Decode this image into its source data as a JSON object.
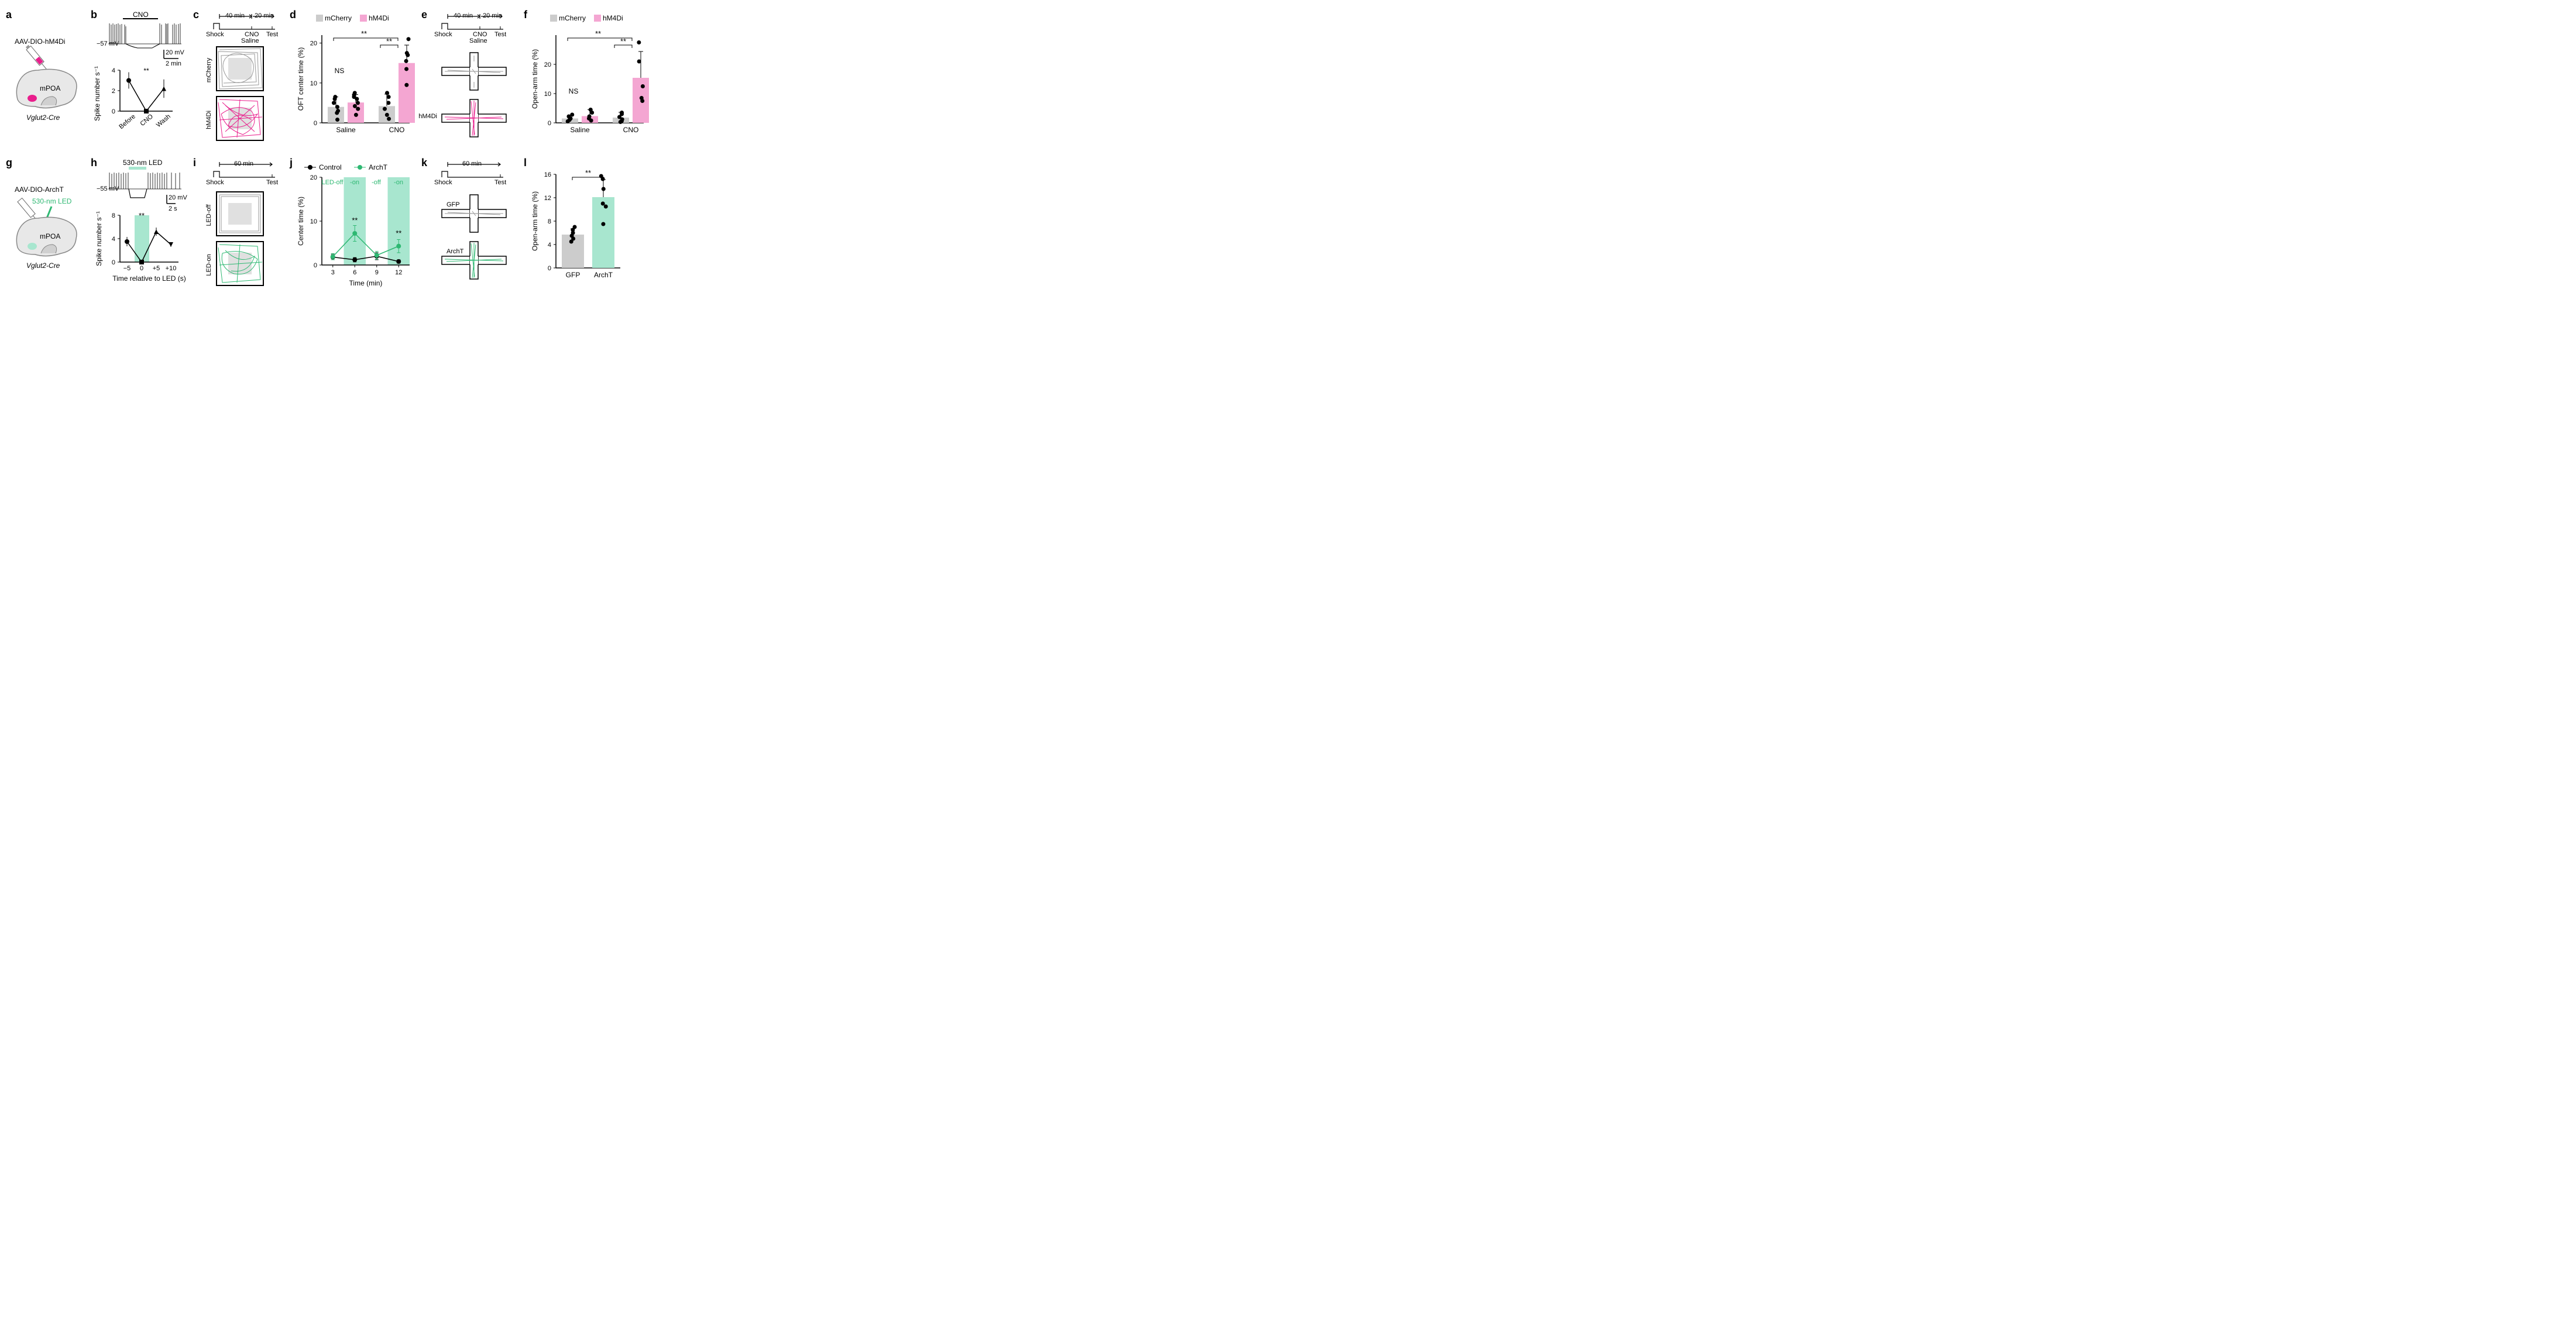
{
  "panels": {
    "a": {
      "virus_label": "AAV-DIO-hM4Di",
      "region": "mPOA",
      "mouse_line": "Vglut2-Cre",
      "virus_color": "#e91e8c"
    },
    "b": {
      "drug_label": "CNO",
      "resting_mv": "−57 mV",
      "scale_v": "20 mV",
      "scale_t": "2 min",
      "ylabel": "Spike number s⁻¹",
      "xcats": [
        "Before",
        "CNO",
        "Wash"
      ],
      "yticks": [
        0,
        2,
        4
      ],
      "values": [
        3.0,
        0,
        2.2
      ],
      "err": [
        0.8,
        0,
        0.9
      ],
      "sig": "**"
    },
    "c": {
      "timeline_labels": {
        "t1": "40 min",
        "t2": "20 min",
        "shock": "Shock",
        "cno": "CNO",
        "saline": "Saline",
        "test": "Test"
      },
      "top_label": "mCherry",
      "bot_label": "hM4Di",
      "top_color": "#999999",
      "bot_color": "#e91e8c"
    },
    "d": {
      "ylabel": "OFT center time (%)",
      "legend": {
        "mcherry": "mCherry",
        "hm4di": "hM4Di"
      },
      "xcats": [
        "Saline",
        "CNO"
      ],
      "yticks": [
        0,
        10,
        20
      ],
      "bars": [
        {
          "val": 4.0,
          "color": "#cccccc",
          "points": [
            0.8,
            2.5,
            3.0,
            4.0,
            5.0,
            6.5,
            6.0
          ]
        },
        {
          "val": 5.1,
          "color": "#f4a6d2",
          "points": [
            2.0,
            3.5,
            4.2,
            5.0,
            6.0,
            6.5,
            7.0,
            7.5
          ]
        },
        {
          "val": 4.2,
          "color": "#cccccc",
          "points": [
            1.0,
            2.0,
            3.5,
            5.0,
            6.5,
            7.5
          ]
        },
        {
          "val": 15.0,
          "color": "#f4a6d2",
          "points": [
            9.5,
            13.5,
            15.5,
            17.0,
            17.5,
            21.0
          ]
        }
      ],
      "err": [
        2.5,
        2.0,
        3.0,
        4.5
      ],
      "sig": "**",
      "ns": "NS",
      "mcherry_color": "#cccccc",
      "hm4di_color": "#f4a6d2"
    },
    "e": {
      "timeline_labels": {
        "t1": "40 min",
        "t2": "20 min",
        "shock": "Shock",
        "cno": "CNO",
        "saline": "Saline",
        "test": "Test"
      },
      "bot_label": "hM4Di",
      "top_color": "#999999",
      "bot_color": "#e91e8c"
    },
    "f": {
      "ylabel": "Open-arm time (%)",
      "legend": {
        "mcherry": "mCherry",
        "hm4di": "hM4Di"
      },
      "xcats": [
        "Saline",
        "CNO"
      ],
      "yticks": [
        0,
        10,
        20
      ],
      "bars": [
        {
          "val": 1.5,
          "color": "#cccccc",
          "points": [
            0.5,
            1.0,
            1.5,
            2.2,
            2.8
          ]
        },
        {
          "val": 2.3,
          "color": "#f4a6d2",
          "points": [
            0.8,
            1.5,
            2.2,
            3.5,
            4.5
          ]
        },
        {
          "val": 1.8,
          "color": "#cccccc",
          "points": [
            0.3,
            0.6,
            1.2,
            2.0,
            3.0,
            3.5
          ]
        },
        {
          "val": 15.4,
          "color": "#f4a6d2",
          "points": [
            7.5,
            8.5,
            12.5,
            21.0,
            27.5
          ]
        }
      ],
      "err": [
        1.2,
        2.2,
        1.8,
        9.0
      ],
      "sig": "**",
      "ns": "NS",
      "mcherry_color": "#cccccc",
      "hm4di_color": "#f4a6d2"
    },
    "g": {
      "virus_label": "AAV-DIO-ArchT",
      "led_label": "530-nm LED",
      "region": "mPOA",
      "mouse_line": "Vglut2-Cre",
      "led_color": "#2eb872"
    },
    "h": {
      "led_label": "530-nm LED",
      "led_color": "#a8e6cf",
      "resting_mv": "−55 mV",
      "scale_v": "20 mV",
      "scale_t": "2 s",
      "ylabel": "Spike number s⁻¹",
      "xlabel": "Time relative to LED (s)",
      "xcats": [
        "−5",
        "0",
        "+5",
        "+10"
      ],
      "yticks": [
        0,
        4,
        8
      ],
      "values": [
        3.5,
        0,
        5.2,
        3.0
      ],
      "err": [
        0.8,
        0,
        0.7,
        0.4
      ],
      "sig": "**"
    },
    "i": {
      "timeline_labels": {
        "t1": "60 min",
        "shock": "Shock",
        "test": "Test"
      },
      "top_label": "LED-off",
      "bot_label": "LED-on",
      "top_color": "#999999",
      "bot_color": "#2eb872"
    },
    "j": {
      "ylabel": "Center time (%)",
      "xlabel": "Time (min)",
      "legend": {
        "control": "Control",
        "archt": "ArchT"
      },
      "xticks": [
        3,
        6,
        9,
        12
      ],
      "yticks": [
        0,
        10,
        20
      ],
      "led_labels": [
        "LED-off",
        "-on",
        "-off",
        "-on"
      ],
      "led_color": "#a8e6cf",
      "control": {
        "color": "#000000",
        "vals": [
          1.8,
          1.2,
          2.0,
          0.8
        ],
        "err": [
          0.6,
          0.5,
          0.8,
          0.4
        ]
      },
      "archt": {
        "color": "#2eb872",
        "vals": [
          1.9,
          7.2,
          2.2,
          4.3
        ],
        "err": [
          0.7,
          1.8,
          0.9,
          1.5
        ]
      },
      "sig": "**"
    },
    "k": {
      "timeline_labels": {
        "t1": "60 min",
        "shock": "Shock",
        "test": "Test"
      },
      "top_label": "GFP",
      "bot_label": "ArchT",
      "top_color": "#999999",
      "bot_color": "#2eb872"
    },
    "l": {
      "ylabel": "Open-arm time (%)",
      "xcats": [
        "GFP",
        "ArchT"
      ],
      "yticks": [
        0,
        4,
        8,
        12,
        16
      ],
      "bars": [
        {
          "val": 5.7,
          "color": "#cccccc",
          "points": [
            4.5,
            5.0,
            5.5,
            6.0,
            6.5,
            7.0
          ]
        },
        {
          "val": 12.1,
          "color": "#a8e6cf",
          "points": [
            7.5,
            10.5,
            11.0,
            13.5,
            15.2,
            15.7
          ]
        }
      ],
      "err": [
        1.0,
        3.0
      ],
      "sig": "**",
      "gfp_color": "#cccccc",
      "archt_color": "#a8e6cf"
    }
  }
}
